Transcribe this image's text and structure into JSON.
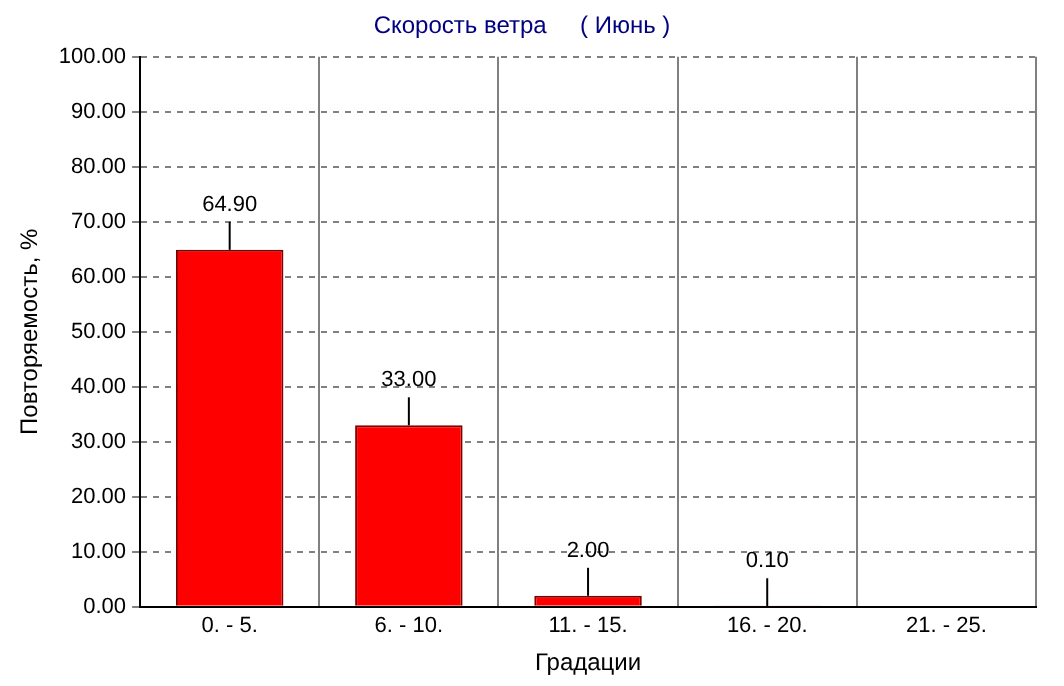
{
  "chart_data": {
    "type": "bar",
    "title": "Скорость ветра     ( Июнь )",
    "xlabel": "Градации",
    "ylabel": "Повторяемость, %",
    "categories": [
      "0. - 5.",
      "6. - 10.",
      "11. - 15.",
      "16. - 20.",
      "21. - 25."
    ],
    "values": [
      64.9,
      33.0,
      2.0,
      0.1,
      0
    ],
    "value_labels": [
      "64.90",
      "33.00",
      "2.00",
      "0.10",
      null
    ],
    "color": "#ff0000",
    "ylim": [
      0,
      100
    ],
    "yticks": [
      {
        "value": 0,
        "label": "0.00"
      },
      {
        "value": 10,
        "label": "10.00"
      },
      {
        "value": 20,
        "label": "20.00"
      },
      {
        "value": 30,
        "label": "30.00"
      },
      {
        "value": 40,
        "label": "40.00"
      },
      {
        "value": 50,
        "label": "50.00"
      },
      {
        "value": 60,
        "label": "60.00"
      },
      {
        "value": 70,
        "label": "70.00"
      },
      {
        "value": 80,
        "label": "80.00"
      },
      {
        "value": 90,
        "label": "90.00"
      },
      {
        "value": 100,
        "label": "100.00"
      }
    ],
    "grid": true,
    "legend": false
  }
}
